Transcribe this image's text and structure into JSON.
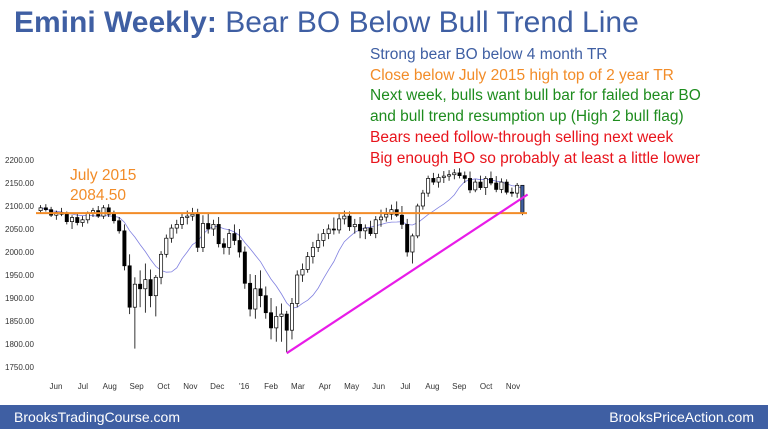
{
  "title": {
    "bold": "Emini Weekly:",
    "rest": "Bear BO Below Bull Trend Line"
  },
  "annotations": [
    {
      "text": "Strong bear BO below 4 month TR",
      "color": "#3f5fa3"
    },
    {
      "text": "Close below July 2015 high top of 2 year TR",
      "color": "#f28c28"
    },
    {
      "text": "Next week, bulls want bull bar for failed bear BO",
      "color": "#1e8c1e"
    },
    {
      "text": "and bull trend resumption up (High 2 bull flag)",
      "color": "#1e8c1e"
    },
    {
      "text": "Bears need follow-through selling next week",
      "color": "#e8141c"
    },
    {
      "text": "Big enough BO so probably at least a little lower",
      "color": "#e8141c"
    }
  ],
  "level_label": {
    "line1": "July 2015",
    "line2": "2084.50",
    "color": "#f28c28"
  },
  "footer": {
    "left": "BrooksTradingCourse.com",
    "right": "BrooksPriceAction.com",
    "background": "#3f5fa3"
  },
  "chart_data": {
    "type": "candlestick",
    "y_ticks": [
      "2200.00",
      "2150.00",
      "2100.00",
      "2050.00",
      "2000.00",
      "1950.00",
      "1900.00",
      "1850.00",
      "1800.00",
      "1750.00"
    ],
    "ylim": [
      1750,
      2200
    ],
    "x_labels": [
      "Jun",
      "Jul",
      "Aug",
      "Sep",
      "Oct",
      "Nov",
      "Dec",
      "'16",
      "Feb",
      "Mar",
      "Apr",
      "May",
      "Jun",
      "Jul",
      "Aug",
      "Sep",
      "Oct",
      "Nov"
    ],
    "horizontal_line": {
      "value": 2084.5,
      "color": "#f28c28"
    },
    "trend_line": {
      "from": {
        "week": 47,
        "price": 1780
      },
      "to": {
        "week": 93,
        "price": 2125
      },
      "color": "#e81ce8"
    },
    "moving_average_color": "#8080e0",
    "up_color": "#ffffff",
    "down_color": "#000000",
    "last_bar_color": "#3f5fa3",
    "bars": [
      [
        2090,
        2102,
        2085,
        2096
      ],
      [
        2096,
        2104,
        2088,
        2092
      ],
      [
        2092,
        2098,
        2076,
        2080
      ],
      [
        2080,
        2090,
        2070,
        2086
      ],
      [
        2086,
        2096,
        2078,
        2082
      ],
      [
        2082,
        2088,
        2060,
        2066
      ],
      [
        2066,
        2080,
        2050,
        2075
      ],
      [
        2075,
        2085,
        2058,
        2064
      ],
      [
        2064,
        2078,
        2055,
        2070
      ],
      [
        2070,
        2088,
        2062,
        2084
      ],
      [
        2084,
        2096,
        2076,
        2090
      ],
      [
        2090,
        2100,
        2074,
        2078
      ],
      [
        2078,
        2102,
        2072,
        2096
      ],
      [
        2096,
        2104,
        2076,
        2082
      ],
      [
        2082,
        2090,
        2062,
        2068
      ],
      [
        2068,
        2076,
        2040,
        2046
      ],
      [
        2046,
        2060,
        1960,
        1970
      ],
      [
        1970,
        1995,
        1865,
        1880
      ],
      [
        1880,
        1945,
        1790,
        1930
      ],
      [
        1930,
        1960,
        1880,
        1920
      ],
      [
        1920,
        1975,
        1868,
        1940
      ],
      [
        1940,
        1962,
        1880,
        1905
      ],
      [
        1905,
        1950,
        1860,
        1945
      ],
      [
        1945,
        2002,
        1930,
        1995
      ],
      [
        1995,
        2038,
        1988,
        2030
      ],
      [
        2030,
        2060,
        2020,
        2052
      ],
      [
        2052,
        2070,
        2040,
        2060
      ],
      [
        2060,
        2085,
        2050,
        2075
      ],
      [
        2075,
        2090,
        2060,
        2078
      ],
      [
        2078,
        2096,
        2068,
        2082
      ],
      [
        2082,
        2094,
        2000,
        2010
      ],
      [
        2010,
        2080,
        2000,
        2062
      ],
      [
        2062,
        2086,
        2040,
        2050
      ],
      [
        2050,
        2070,
        2035,
        2060
      ],
      [
        2060,
        2076,
        2010,
        2018
      ],
      [
        2018,
        2030,
        1995,
        2010
      ],
      [
        2010,
        2050,
        1994,
        2040
      ],
      [
        2040,
        2060,
        2015,
        2025
      ],
      [
        2025,
        2050,
        1988,
        2000
      ],
      [
        2000,
        2012,
        1920,
        1932
      ],
      [
        1932,
        1952,
        1860,
        1876
      ],
      [
        1876,
        1950,
        1855,
        1920
      ],
      [
        1920,
        1960,
        1880,
        1905
      ],
      [
        1905,
        1925,
        1855,
        1868
      ],
      [
        1868,
        1900,
        1810,
        1835
      ],
      [
        1835,
        1882,
        1805,
        1860
      ],
      [
        1860,
        1888,
        1805,
        1865
      ],
      [
        1865,
        1872,
        1782,
        1830
      ],
      [
        1830,
        1900,
        1810,
        1888
      ],
      [
        1888,
        1960,
        1880,
        1950
      ],
      [
        1950,
        1975,
        1935,
        1962
      ],
      [
        1962,
        2000,
        1955,
        1990
      ],
      [
        1990,
        2022,
        1975,
        2010
      ],
      [
        2010,
        2040,
        2000,
        2025
      ],
      [
        2025,
        2050,
        2012,
        2040
      ],
      [
        2040,
        2060,
        2028,
        2050
      ],
      [
        2050,
        2075,
        2038,
        2048
      ],
      [
        2048,
        2085,
        2040,
        2072
      ],
      [
        2072,
        2090,
        2060,
        2078
      ],
      [
        2078,
        2088,
        2046,
        2055
      ],
      [
        2055,
        2072,
        2040,
        2060
      ],
      [
        2060,
        2076,
        2030,
        2046
      ],
      [
        2046,
        2060,
        2028,
        2052
      ],
      [
        2052,
        2068,
        2035,
        2040
      ],
      [
        2040,
        2078,
        2030,
        2070
      ],
      [
        2070,
        2092,
        2055,
        2076
      ],
      [
        2076,
        2096,
        2066,
        2082
      ],
      [
        2082,
        2103,
        2070,
        2092
      ],
      [
        2092,
        2110,
        2076,
        2080
      ],
      [
        2080,
        2100,
        2050,
        2060
      ],
      [
        2060,
        2072,
        1990,
        2000
      ],
      [
        2000,
        2040,
        1975,
        2035
      ],
      [
        2035,
        2105,
        2030,
        2100
      ],
      [
        2100,
        2135,
        2092,
        2128
      ],
      [
        2128,
        2166,
        2120,
        2160
      ],
      [
        2160,
        2172,
        2146,
        2152
      ],
      [
        2152,
        2170,
        2140,
        2162
      ],
      [
        2162,
        2176,
        2150,
        2165
      ],
      [
        2165,
        2178,
        2155,
        2168
      ],
      [
        2168,
        2180,
        2158,
        2172
      ],
      [
        2172,
        2182,
        2160,
        2166
      ],
      [
        2166,
        2175,
        2150,
        2160
      ],
      [
        2160,
        2175,
        2128,
        2135
      ],
      [
        2135,
        2158,
        2130,
        2152
      ],
      [
        2152,
        2166,
        2135,
        2140
      ],
      [
        2140,
        2165,
        2124,
        2160
      ],
      [
        2160,
        2175,
        2145,
        2150
      ],
      [
        2150,
        2165,
        2130,
        2136
      ],
      [
        2136,
        2160,
        2128,
        2152
      ],
      [
        2152,
        2158,
        2125,
        2130
      ],
      [
        2130,
        2140,
        2120,
        2128
      ],
      [
        2128,
        2150,
        2118,
        2145
      ],
      [
        2145,
        2145,
        2080,
        2086
      ]
    ]
  }
}
